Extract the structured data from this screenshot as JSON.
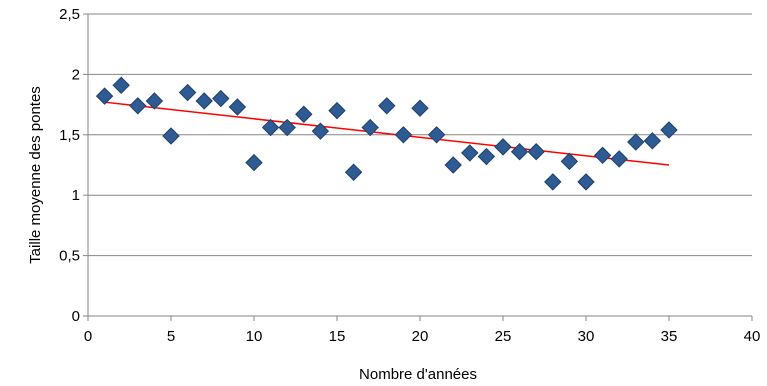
{
  "chart_data": {
    "type": "scatter",
    "xlabel": "Nombre d'années",
    "ylabel": "Taille moyenne des pontes",
    "xlim": [
      0,
      40
    ],
    "ylim": [
      0,
      2.5
    ],
    "x_ticks": [
      "0",
      "5",
      "10",
      "15",
      "20",
      "25",
      "30",
      "35",
      "40"
    ],
    "y_ticks": [
      "0",
      "0,5",
      "1",
      "1,5",
      "2",
      "2,5"
    ],
    "grid": "horizontal",
    "legend": "none",
    "marker": "diamond",
    "marker_color": "#2e5b93",
    "trendline_color": "#ff0000",
    "series": [
      {
        "x": [
          1,
          2,
          3,
          4,
          5,
          6,
          7,
          8,
          9,
          10,
          11,
          12,
          13,
          14,
          15,
          16,
          17,
          18,
          19,
          20,
          21,
          22,
          23,
          24,
          25,
          26,
          27,
          28,
          29,
          30,
          31,
          32,
          33,
          34,
          35
        ],
        "y": [
          1.82,
          1.91,
          1.74,
          1.78,
          1.49,
          1.85,
          1.78,
          1.8,
          1.73,
          1.27,
          1.56,
          1.56,
          1.67,
          1.53,
          1.7,
          1.19,
          1.56,
          1.74,
          1.5,
          1.72,
          1.5,
          1.25,
          1.35,
          1.32,
          1.4,
          1.36,
          1.36,
          1.11,
          1.28,
          1.11,
          1.33,
          1.3,
          1.44,
          1.45,
          1.54
        ]
      }
    ],
    "trendline": {
      "x": [
        1,
        35
      ],
      "y": [
        1.77,
        1.25
      ]
    }
  }
}
